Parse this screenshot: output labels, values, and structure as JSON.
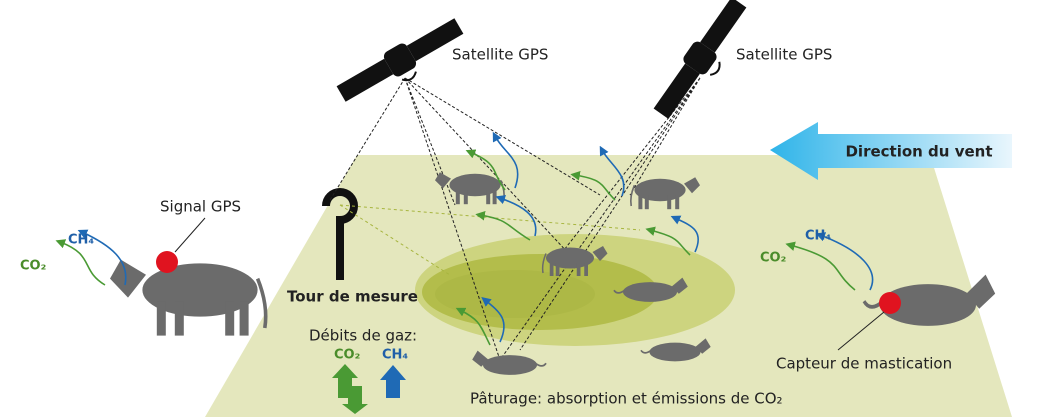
{
  "satellites": [
    {
      "label": "Satellite GPS"
    },
    {
      "label": "Satellite GPS"
    }
  ],
  "wind": {
    "label": "Direction du vent"
  },
  "left_cow": {
    "signal": "Signal GPS",
    "gases": [
      "CH₄",
      "CO₂"
    ]
  },
  "right_cow": {
    "sensor": "Capteur de mastication",
    "gases": [
      "CH₄",
      "CO₂"
    ]
  },
  "tower": {
    "label": "Tour de mesure"
  },
  "gas_flows": {
    "title": "Débits de gaz:",
    "gases": [
      "CO₂",
      "CH₄"
    ]
  },
  "pasture": {
    "label": "Pâturage: absorption et émissions de CO₂"
  }
}
